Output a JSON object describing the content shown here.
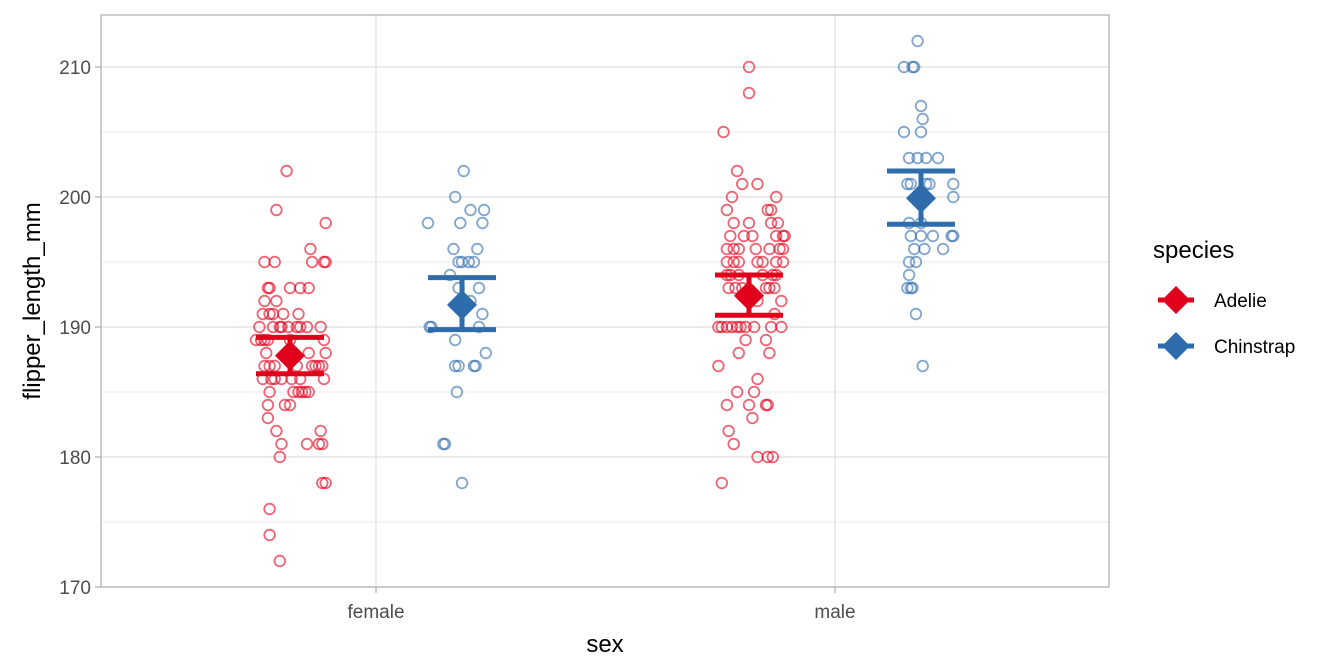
{
  "chart_data": {
    "type": "scatter",
    "subtype": "jittered points with mean and standard-error summary",
    "title": "",
    "xlabel": "sex",
    "ylabel": "flipper_length_mm",
    "categories": [
      "female",
      "male"
    ],
    "ylim": [
      170,
      214
    ],
    "yticks": [
      170,
      180,
      190,
      200,
      210
    ],
    "grid": true,
    "legend": {
      "title": "species",
      "placement": "right",
      "entries": [
        {
          "label": "Adelie",
          "color": "#E0001B"
        },
        {
          "label": "Chinstrap",
          "color": "#2F6CAC"
        }
      ]
    },
    "series": [
      {
        "name": "Adelie",
        "color": "#E0001B",
        "groups": [
          {
            "category": "female",
            "mean": 187.8,
            "ymin": 186.4,
            "ymax": 189.2,
            "points": [
              [
                -0.02,
                202
              ],
              [
                -0.08,
                199
              ],
              [
                0.21,
                198
              ],
              [
                0.12,
                196
              ],
              [
                -0.15,
                195
              ],
              [
                -0.09,
                195
              ],
              [
                0.13,
                195
              ],
              [
                0.2,
                195
              ],
              [
                0.21,
                195
              ],
              [
                -0.13,
                193
              ],
              [
                -0.12,
                193
              ],
              [
                0.0,
                193
              ],
              [
                0.06,
                193
              ],
              [
                0.11,
                193
              ],
              [
                -0.15,
                192
              ],
              [
                -0.08,
                192
              ],
              [
                -0.16,
                191
              ],
              [
                -0.12,
                191
              ],
              [
                -0.1,
                191
              ],
              [
                -0.04,
                191
              ],
              [
                0.05,
                191
              ],
              [
                -0.18,
                190
              ],
              [
                -0.1,
                190
              ],
              [
                -0.06,
                190
              ],
              [
                -0.05,
                190
              ],
              [
                -0.01,
                190
              ],
              [
                0.04,
                190
              ],
              [
                0.06,
                190
              ],
              [
                0.1,
                190
              ],
              [
                0.18,
                190
              ],
              [
                -0.2,
                189
              ],
              [
                -0.17,
                189
              ],
              [
                -0.15,
                189
              ],
              [
                -0.13,
                189
              ],
              [
                0.0,
                189
              ],
              [
                0.2,
                189
              ],
              [
                -0.14,
                188
              ],
              [
                0.0,
                188
              ],
              [
                0.11,
                188
              ],
              [
                0.21,
                188
              ],
              [
                -0.15,
                187
              ],
              [
                -0.12,
                187
              ],
              [
                -0.09,
                187
              ],
              [
                0.04,
                187
              ],
              [
                0.13,
                187
              ],
              [
                0.15,
                187
              ],
              [
                0.17,
                187
              ],
              [
                0.19,
                187
              ],
              [
                -0.16,
                186
              ],
              [
                -0.11,
                186
              ],
              [
                -0.09,
                186
              ],
              [
                -0.05,
                186
              ],
              [
                0.01,
                186
              ],
              [
                0.06,
                186
              ],
              [
                0.2,
                186
              ],
              [
                -0.12,
                185
              ],
              [
                0.02,
                185
              ],
              [
                0.05,
                185
              ],
              [
                0.07,
                185
              ],
              [
                0.09,
                185
              ],
              [
                0.11,
                185
              ],
              [
                -0.13,
                184
              ],
              [
                -0.03,
                184
              ],
              [
                0.0,
                184
              ],
              [
                -0.13,
                183
              ],
              [
                -0.08,
                182
              ],
              [
                0.18,
                182
              ],
              [
                -0.05,
                181
              ],
              [
                0.1,
                181
              ],
              [
                0.17,
                181
              ],
              [
                0.19,
                181
              ],
              [
                -0.06,
                180
              ],
              [
                0.19,
                178
              ],
              [
                0.21,
                178
              ],
              [
                -0.12,
                176
              ],
              [
                -0.12,
                174
              ],
              [
                -0.06,
                172
              ]
            ]
          },
          {
            "category": "male",
            "mean": 192.4,
            "ymin": 190.9,
            "ymax": 194.0,
            "points": [
              [
                0.0,
                210
              ],
              [
                0.0,
                208
              ],
              [
                -0.15,
                205
              ],
              [
                -0.07,
                202
              ],
              [
                -0.04,
                201
              ],
              [
                0.05,
                201
              ],
              [
                0.16,
                200
              ],
              [
                -0.1,
                200
              ],
              [
                -0.13,
                199
              ],
              [
                0.11,
                199
              ],
              [
                0.13,
                199
              ],
              [
                -0.09,
                198
              ],
              [
                0.13,
                198
              ],
              [
                0.17,
                198
              ],
              [
                0.0,
                198
              ],
              [
                -0.11,
                197
              ],
              [
                -0.03,
                197
              ],
              [
                0.02,
                197
              ],
              [
                0.16,
                197
              ],
              [
                0.2,
                197
              ],
              [
                0.21,
                197
              ],
              [
                -0.13,
                196
              ],
              [
                -0.09,
                196
              ],
              [
                -0.06,
                196
              ],
              [
                0.04,
                196
              ],
              [
                0.12,
                196
              ],
              [
                0.18,
                196
              ],
              [
                0.2,
                196
              ],
              [
                -0.13,
                195
              ],
              [
                -0.09,
                195
              ],
              [
                -0.06,
                195
              ],
              [
                0.05,
                195
              ],
              [
                0.08,
                195
              ],
              [
                0.16,
                195
              ],
              [
                0.2,
                195
              ],
              [
                -0.13,
                194
              ],
              [
                -0.11,
                194
              ],
              [
                -0.06,
                194
              ],
              [
                0.08,
                194
              ],
              [
                0.14,
                194
              ],
              [
                0.16,
                194
              ],
              [
                -0.12,
                193
              ],
              [
                -0.08,
                193
              ],
              [
                -0.04,
                193
              ],
              [
                0.1,
                193
              ],
              [
                0.12,
                193
              ],
              [
                0.15,
                193
              ],
              [
                0.19,
                192
              ],
              [
                0.05,
                192
              ],
              [
                0.15,
                191
              ],
              [
                -0.18,
                190
              ],
              [
                -0.16,
                190
              ],
              [
                -0.13,
                190
              ],
              [
                -0.1,
                190
              ],
              [
                -0.07,
                190
              ],
              [
                -0.05,
                190
              ],
              [
                -0.02,
                190
              ],
              [
                0.03,
                190
              ],
              [
                0.13,
                190
              ],
              [
                0.19,
                190
              ],
              [
                -0.02,
                189
              ],
              [
                0.1,
                189
              ],
              [
                -0.06,
                188
              ],
              [
                0.12,
                188
              ],
              [
                -0.18,
                187
              ],
              [
                0.05,
                186
              ],
              [
                -0.07,
                185
              ],
              [
                0.03,
                185
              ],
              [
                -0.13,
                184
              ],
              [
                0.0,
                184
              ],
              [
                0.1,
                184
              ],
              [
                0.11,
                184
              ],
              [
                0.02,
                183
              ],
              [
                -0.12,
                182
              ],
              [
                -0.09,
                181
              ],
              [
                0.05,
                180
              ],
              [
                0.11,
                180
              ],
              [
                0.14,
                180
              ],
              [
                -0.16,
                178
              ]
            ]
          }
        ]
      },
      {
        "name": "Chinstrap",
        "color": "#2F6CAC",
        "groups": [
          {
            "category": "female",
            "mean": 191.7,
            "ymin": 189.8,
            "ymax": 193.8,
            "points": [
              [
                0.01,
                202
              ],
              [
                -0.04,
                200
              ],
              [
                0.05,
                199
              ],
              [
                0.13,
                199
              ],
              [
                -0.2,
                198
              ],
              [
                -0.01,
                198
              ],
              [
                0.12,
                198
              ],
              [
                -0.05,
                196
              ],
              [
                0.09,
                196
              ],
              [
                -0.02,
                195
              ],
              [
                0.0,
                195
              ],
              [
                0.04,
                195
              ],
              [
                0.07,
                195
              ],
              [
                -0.07,
                194
              ],
              [
                0.1,
                193
              ],
              [
                -0.02,
                193
              ],
              [
                0.05,
                192
              ],
              [
                0.12,
                191
              ],
              [
                -0.19,
                190
              ],
              [
                -0.18,
                190
              ],
              [
                0.1,
                190
              ],
              [
                -0.04,
                189
              ],
              [
                -0.04,
                187
              ],
              [
                -0.02,
                187
              ],
              [
                0.07,
                187
              ],
              [
                0.08,
                187
              ],
              [
                0.14,
                188
              ],
              [
                -0.03,
                185
              ],
              [
                -0.1,
                181
              ],
              [
                -0.11,
                181
              ],
              [
                0.0,
                178
              ]
            ]
          },
          {
            "category": "male",
            "mean": 199.9,
            "ymin": 197.9,
            "ymax": 202.0,
            "points": [
              [
                -0.02,
                212
              ],
              [
                -0.1,
                210
              ],
              [
                -0.05,
                210
              ],
              [
                -0.04,
                210
              ],
              [
                0.0,
                207
              ],
              [
                0.01,
                206
              ],
              [
                -0.1,
                205
              ],
              [
                0.0,
                205
              ],
              [
                -0.07,
                203
              ],
              [
                -0.02,
                203
              ],
              [
                0.03,
                203
              ],
              [
                0.1,
                203
              ],
              [
                -0.08,
                201
              ],
              [
                -0.06,
                201
              ],
              [
                0.03,
                201
              ],
              [
                0.05,
                201
              ],
              [
                0.19,
                201
              ],
              [
                0.19,
                200
              ],
              [
                -0.07,
                198
              ],
              [
                0.0,
                198
              ],
              [
                -0.06,
                197
              ],
              [
                0.0,
                197
              ],
              [
                0.07,
                197
              ],
              [
                0.18,
                197
              ],
              [
                0.19,
                197
              ],
              [
                0.02,
                196
              ],
              [
                -0.04,
                196
              ],
              [
                -0.03,
                195
              ],
              [
                -0.07,
                195
              ],
              [
                0.13,
                196
              ],
              [
                -0.07,
                194
              ],
              [
                -0.08,
                193
              ],
              [
                -0.06,
                193
              ],
              [
                -0.05,
                193
              ],
              [
                -0.03,
                191
              ],
              [
                0.01,
                187
              ]
            ]
          }
        ]
      }
    ]
  }
}
